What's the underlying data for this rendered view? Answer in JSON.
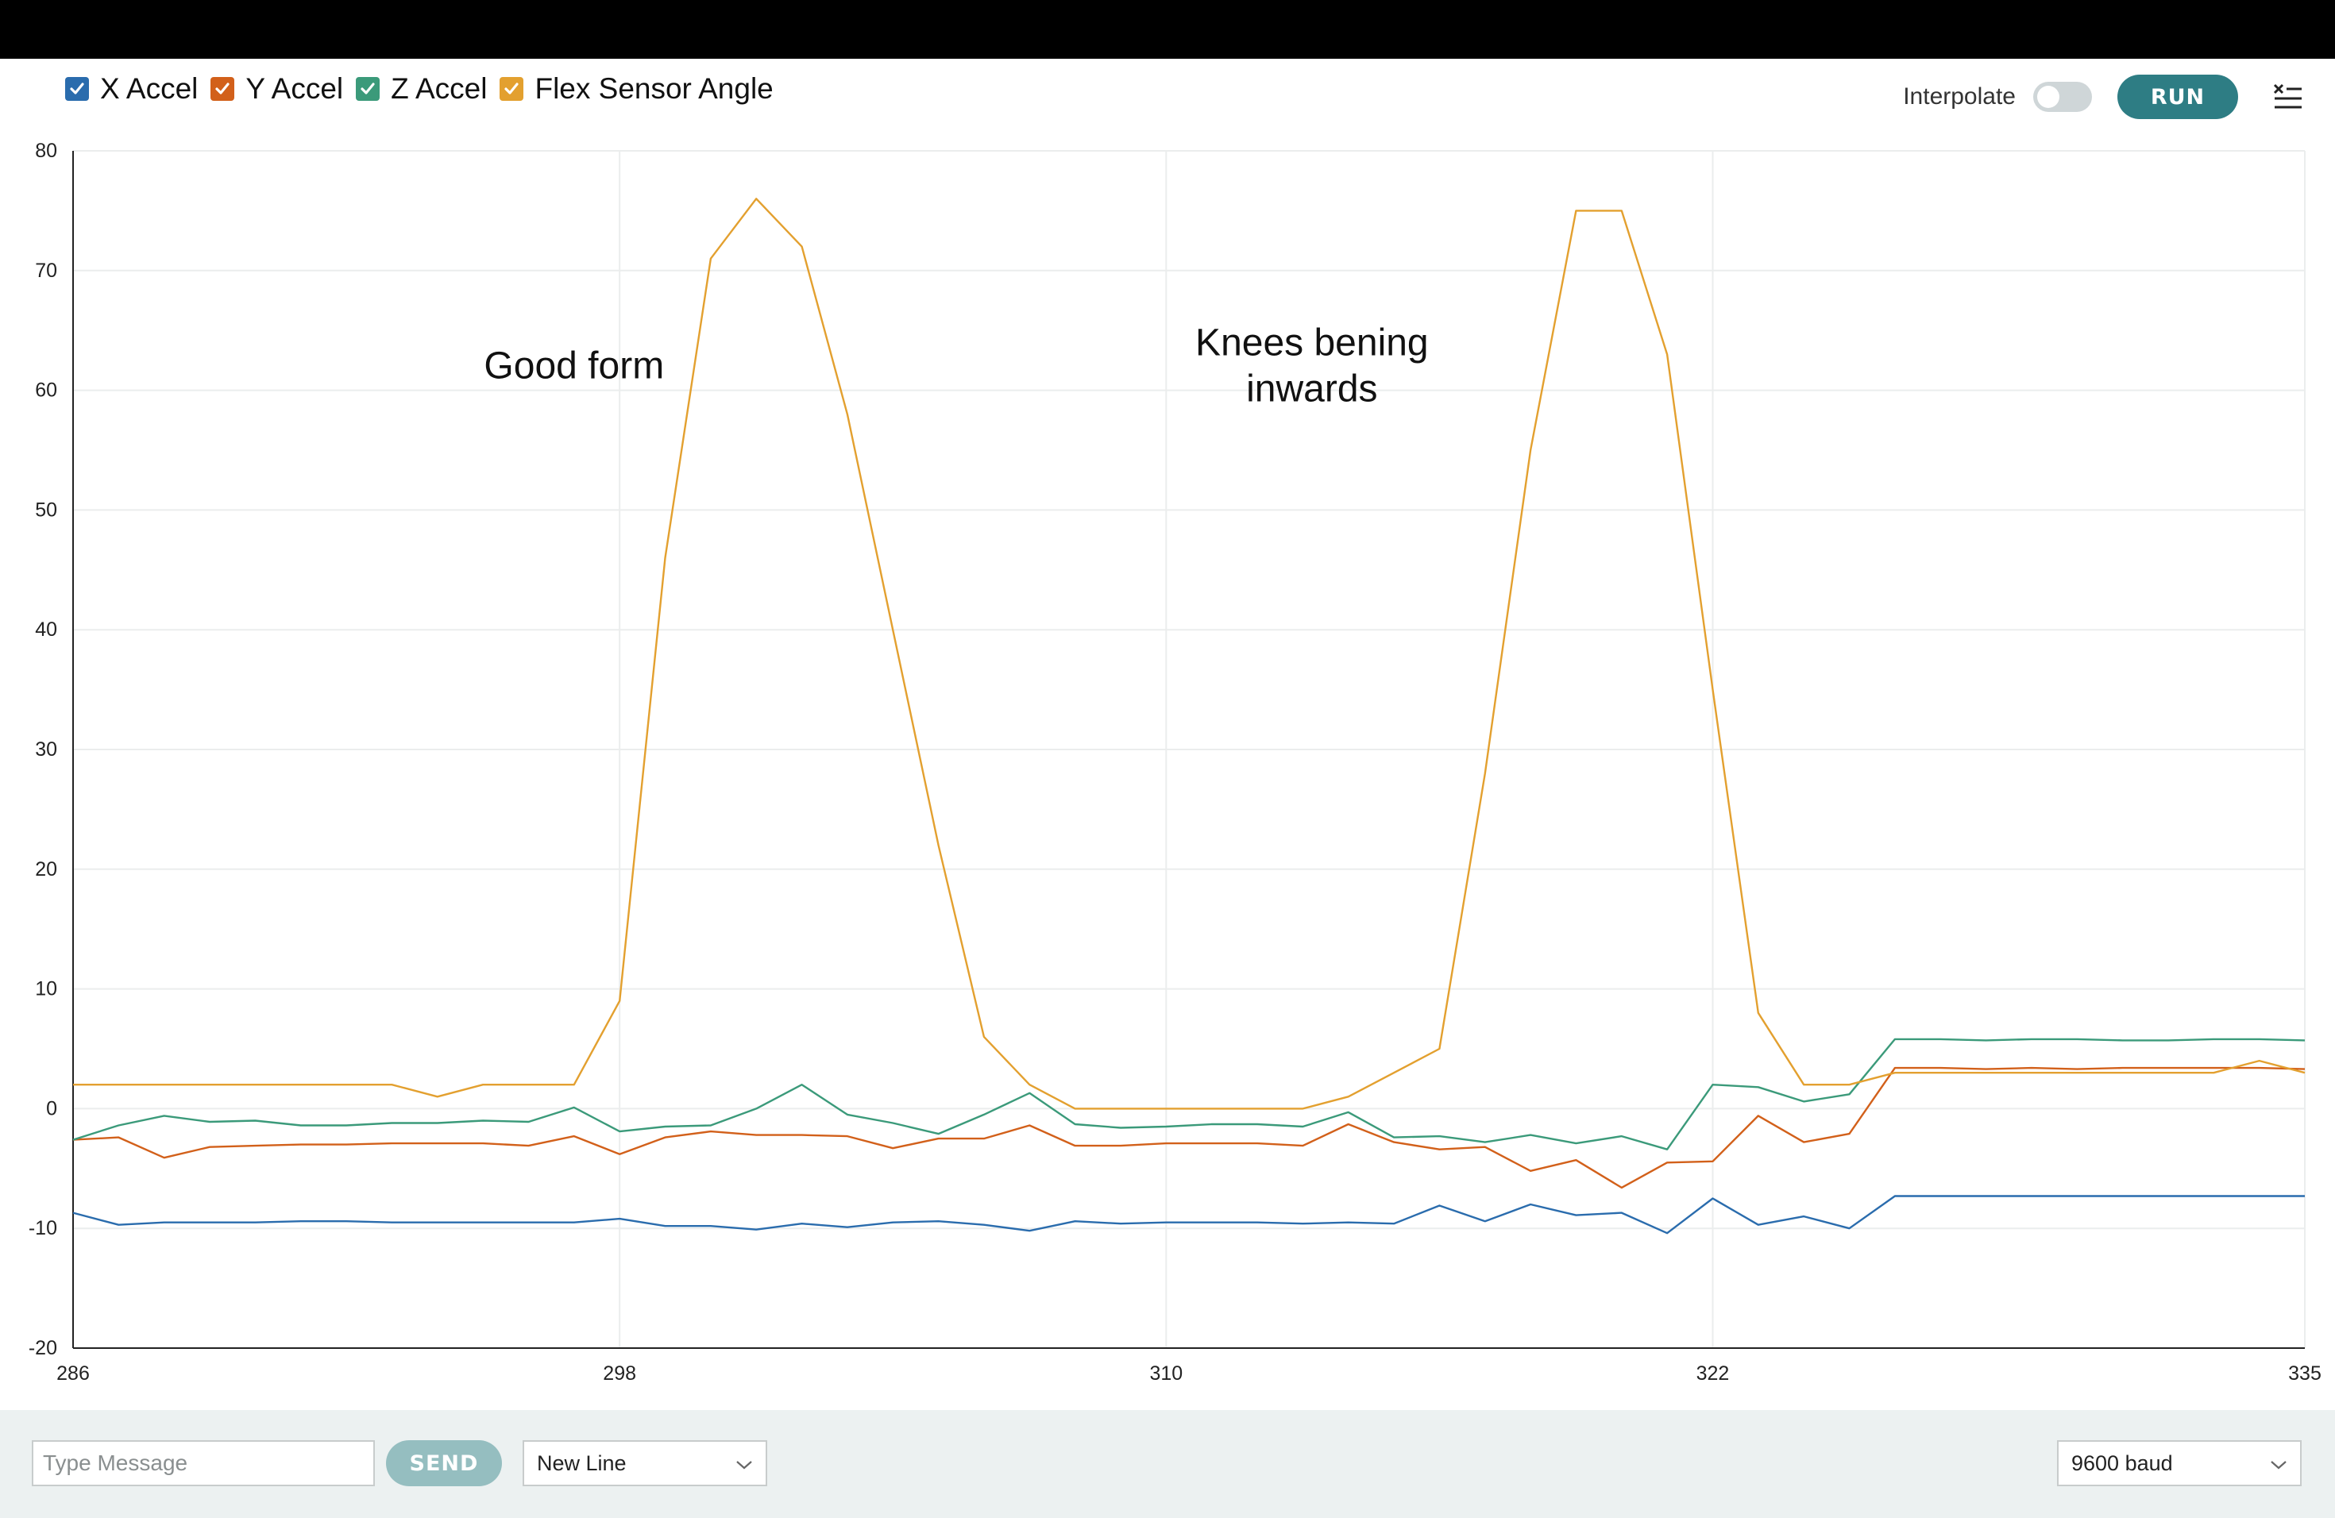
{
  "legend": {
    "items": [
      {
        "label": "X Accel",
        "color": "#2a6cad"
      },
      {
        "label": "Y Accel",
        "color": "#d2601a"
      },
      {
        "label": "Z Accel",
        "color": "#3b9a7a"
      },
      {
        "label": "Flex Sensor Angle",
        "color": "#e3a02f"
      }
    ]
  },
  "controls": {
    "interpolate_label": "Interpolate",
    "interpolate_on": false,
    "run_label": "RUN",
    "menu_icon": "clear-output-icon"
  },
  "bottom": {
    "message_placeholder": "Type Message",
    "send_label": "SEND",
    "line_ending": "New Line",
    "baud": "9600 baud",
    "dropdown_icon": "chevron-down-icon"
  },
  "chart_data": {
    "type": "line",
    "title": "",
    "xlabel": "",
    "ylabel": "",
    "xlim": [
      286,
      335
    ],
    "ylim": [
      -20,
      80
    ],
    "x_ticks": [
      286,
      298,
      310,
      322,
      335
    ],
    "y_ticks": [
      -20,
      -10,
      0,
      10,
      20,
      30,
      40,
      50,
      60,
      70,
      80
    ],
    "grid": true,
    "legend_position": "top-left",
    "x": [
      286,
      287,
      288,
      289,
      290,
      291,
      292,
      293,
      294,
      295,
      296,
      297,
      298,
      299,
      300,
      301,
      302,
      303,
      304,
      305,
      306,
      307,
      308,
      309,
      310,
      311,
      312,
      313,
      314,
      315,
      316,
      317,
      318,
      319,
      320,
      321,
      322,
      323,
      324,
      325,
      326,
      327,
      328,
      329,
      330,
      331,
      332,
      333,
      334,
      335
    ],
    "series": [
      {
        "name": "X Accel",
        "color": "#2a6cad",
        "values": [
          -8.7,
          -9.7,
          -9.5,
          -9.5,
          -9.5,
          -9.4,
          -9.4,
          -9.5,
          -9.5,
          -9.5,
          -9.5,
          -9.5,
          -9.2,
          -9.8,
          -9.8,
          -10.1,
          -9.6,
          -9.9,
          -9.5,
          -9.4,
          -9.7,
          -10.2,
          -9.4,
          -9.6,
          -9.5,
          -9.5,
          -9.5,
          -9.6,
          -9.5,
          -9.6,
          -8.1,
          -9.4,
          -8.0,
          -8.9,
          -8.7,
          -10.4,
          -7.5,
          -9.7,
          -9.0,
          -10.0,
          -7.3,
          -7.3,
          -7.3,
          -7.3,
          -7.3,
          -7.3,
          -7.3,
          -7.3,
          -7.3,
          -7.3
        ]
      },
      {
        "name": "Y Accel",
        "color": "#d2601a",
        "values": [
          -2.6,
          -2.4,
          -4.1,
          -3.2,
          -3.1,
          -3.0,
          -3.0,
          -2.9,
          -2.9,
          -2.9,
          -3.1,
          -2.3,
          -3.8,
          -2.4,
          -1.9,
          -2.2,
          -2.2,
          -2.3,
          -3.3,
          -2.5,
          -2.5,
          -1.4,
          -3.1,
          -3.1,
          -2.9,
          -2.9,
          -2.9,
          -3.1,
          -1.3,
          -2.8,
          -3.4,
          -3.2,
          -5.2,
          -4.3,
          -6.6,
          -4.5,
          -4.4,
          -0.6,
          -2.8,
          -2.1,
          3.4,
          3.4,
          3.3,
          3.4,
          3.3,
          3.4,
          3.4,
          3.4,
          3.4,
          3.3
        ]
      },
      {
        "name": "Z Accel",
        "color": "#3b9a7a",
        "values": [
          -2.6,
          -1.4,
          -0.6,
          -1.1,
          -1.0,
          -1.4,
          -1.4,
          -1.2,
          -1.2,
          -1.0,
          -1.1,
          0.1,
          -1.9,
          -1.5,
          -1.4,
          0.0,
          2.0,
          -0.5,
          -1.2,
          -2.1,
          -0.5,
          1.3,
          -1.3,
          -1.6,
          -1.5,
          -1.3,
          -1.3,
          -1.5,
          -0.3,
          -2.4,
          -2.3,
          -2.8,
          -2.2,
          -2.9,
          -2.3,
          -3.4,
          2.0,
          1.8,
          0.6,
          1.2,
          5.8,
          5.8,
          5.7,
          5.8,
          5.8,
          5.7,
          5.7,
          5.8,
          5.8,
          5.7
        ]
      },
      {
        "name": "Flex Sensor Angle",
        "color": "#e3a02f",
        "values": [
          2,
          2,
          2,
          2,
          2,
          2,
          2,
          2,
          1,
          2,
          2,
          2,
          9,
          46,
          71,
          76,
          72,
          58,
          40,
          22,
          6,
          2,
          0,
          0,
          0,
          0,
          0,
          0,
          1,
          3,
          5,
          28,
          55,
          75,
          75,
          63,
          35,
          8,
          2,
          2,
          3,
          3,
          3,
          3,
          3,
          3,
          3,
          3,
          4,
          3
        ]
      }
    ],
    "annotations": [
      {
        "text": "Good form",
        "x": 297,
        "y": 61
      },
      {
        "text": "Knees bening\ninwards",
        "x": 313.2,
        "y": 61
      }
    ]
  }
}
